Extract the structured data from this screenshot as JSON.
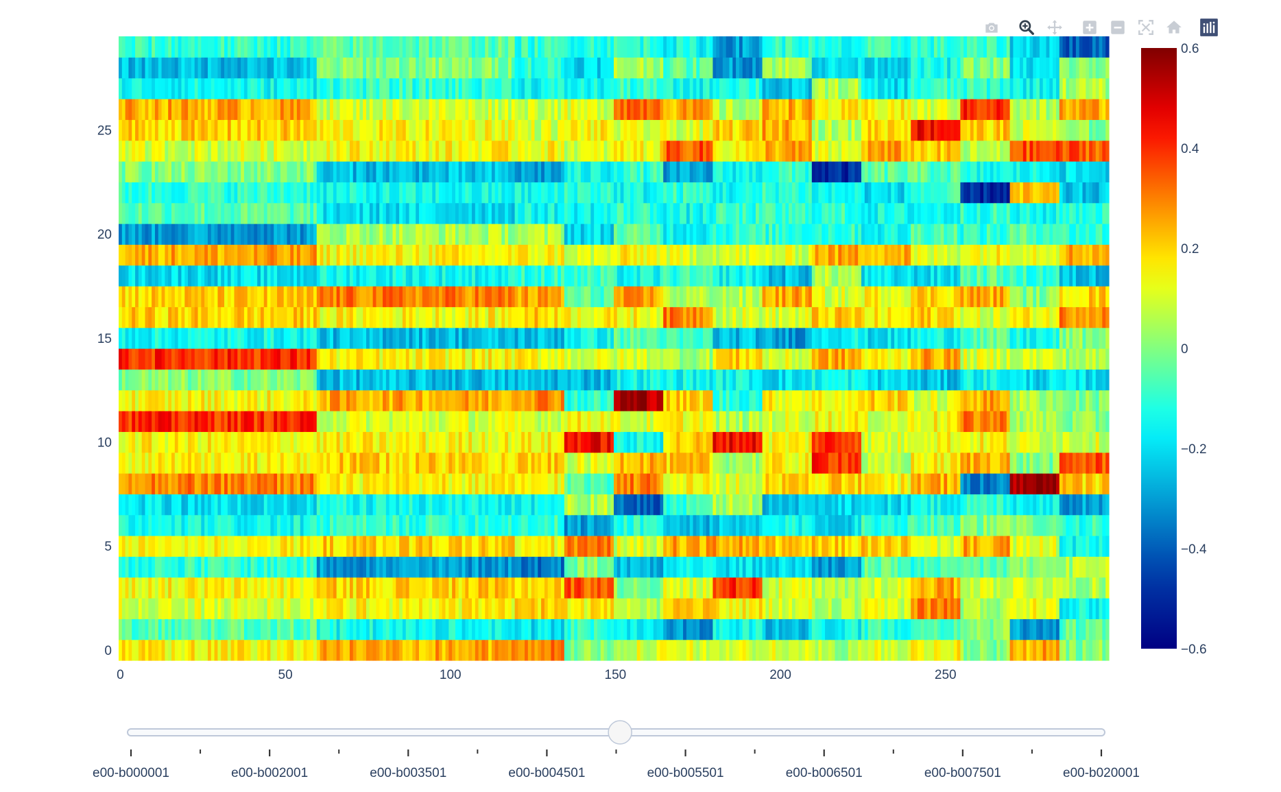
{
  "modebar": {
    "buttons": [
      {
        "icon": "camera-icon",
        "title": "Download plot as a png",
        "active": false
      },
      {
        "icon": "zoom-icon",
        "title": "Zoom",
        "active": true
      },
      {
        "icon": "pan-icon",
        "title": "Pan",
        "active": false
      },
      {
        "icon": "zoom-in-icon",
        "title": "Zoom in",
        "active": false
      },
      {
        "icon": "zoom-out-icon",
        "title": "Zoom out",
        "active": false
      },
      {
        "icon": "autoscale-icon",
        "title": "Autoscale",
        "active": false
      },
      {
        "icon": "reset-axes-icon",
        "title": "Reset axes",
        "active": false
      }
    ],
    "logo_icon": "plotly-logo-icon"
  },
  "chart_data": {
    "type": "heatmap",
    "title": "",
    "xlabel": "",
    "ylabel": "",
    "x_range": [
      0,
      299
    ],
    "y_range": [
      0,
      29
    ],
    "x_ticks": [
      0,
      50,
      100,
      150,
      200,
      250
    ],
    "y_ticks": [
      0,
      5,
      10,
      15,
      20,
      25
    ],
    "colorscale": "Jet",
    "colorbar": {
      "range": [
        -0.6,
        0.6
      ],
      "ticks": [
        0.6,
        0.4,
        0.2,
        0,
        -0.2,
        -0.4,
        -0.6
      ],
      "tick_labels": [
        "0.6",
        "0.4",
        "0.2",
        "0",
        "−0.2",
        "−0.4",
        "−0.6"
      ]
    },
    "column_blocks": [
      0,
      60,
      120,
      135,
      150,
      165,
      180,
      195,
      210,
      225,
      240,
      255,
      270,
      285,
      300
    ],
    "block_means": [
      [
        0.15,
        0.25,
        0.3,
        0.0,
        0.1,
        0.1,
        0.1,
        0.1,
        0.05,
        0.1,
        0.15,
        0.0,
        0.25,
        0.0,
        0.1
      ],
      [
        -0.05,
        -0.15,
        -0.2,
        -0.1,
        -0.15,
        -0.3,
        -0.15,
        -0.25,
        -0.15,
        -0.1,
        -0.05,
        0.0,
        -0.3,
        -0.05,
        -0.25
      ],
      [
        0.1,
        0.15,
        0.2,
        0.15,
        0.05,
        0.25,
        0.15,
        0.1,
        0.05,
        0.1,
        0.3,
        0.05,
        0.15,
        -0.15,
        0.45
      ],
      [
        0.15,
        0.2,
        0.2,
        0.35,
        0.0,
        0.1,
        0.4,
        0.1,
        0.05,
        0.1,
        0.25,
        0.1,
        0.1,
        0.05,
        0.25
      ],
      [
        -0.1,
        -0.3,
        -0.35,
        0.0,
        -0.25,
        -0.15,
        -0.2,
        -0.2,
        -0.3,
        -0.05,
        -0.1,
        -0.05,
        0.0,
        0.05,
        -0.3
      ],
      [
        0.15,
        0.2,
        0.15,
        0.3,
        0.1,
        0.25,
        0.25,
        0.2,
        0.2,
        0.2,
        0.1,
        0.25,
        0.1,
        -0.15,
        0.45
      ],
      [
        -0.15,
        -0.1,
        -0.1,
        -0.3,
        -0.1,
        -0.25,
        -0.25,
        -0.15,
        -0.2,
        -0.1,
        -0.05,
        0.0,
        0.0,
        -0.1,
        -0.05
      ],
      [
        -0.2,
        -0.15,
        -0.15,
        0.05,
        -0.4,
        -0.1,
        0.05,
        -0.25,
        -0.2,
        -0.2,
        -0.15,
        -0.1,
        -0.15,
        -0.3,
        -0.1
      ],
      [
        0.3,
        0.15,
        0.15,
        -0.05,
        0.3,
        0.15,
        0.1,
        0.2,
        0.2,
        0.15,
        0.25,
        -0.35,
        0.55,
        0.2,
        0.15
      ],
      [
        0.15,
        0.2,
        0.2,
        0.1,
        0.25,
        0.2,
        0.05,
        0.15,
        0.4,
        0.05,
        0.15,
        0.25,
        0.0,
        0.35,
        -0.1
      ],
      [
        0.15,
        0.15,
        0.15,
        0.45,
        -0.15,
        0.2,
        0.45,
        0.15,
        0.4,
        0.1,
        0.15,
        0.15,
        0.1,
        0.1,
        0.1
      ],
      [
        0.4,
        0.1,
        0.1,
        0.15,
        0.1,
        0.15,
        0.05,
        0.1,
        0.15,
        0.1,
        0.15,
        0.3,
        0.05,
        0.0,
        0.3
      ],
      [
        0.15,
        0.25,
        0.3,
        -0.1,
        0.55,
        0.2,
        -0.1,
        0.15,
        0.15,
        0.2,
        0.1,
        0.25,
        0.05,
        0.0,
        0.35
      ],
      [
        0.0,
        -0.25,
        -0.25,
        -0.25,
        -0.15,
        -0.15,
        -0.15,
        -0.2,
        -0.15,
        -0.2,
        -0.25,
        -0.15,
        -0.2,
        -0.2,
        -0.15
      ],
      [
        0.4,
        0.15,
        0.15,
        0.1,
        0.1,
        0.05,
        0.2,
        0.1,
        0.25,
        0.15,
        0.25,
        0.1,
        0.1,
        0.05,
        0.15
      ],
      [
        -0.15,
        -0.25,
        -0.25,
        -0.15,
        -0.05,
        -0.1,
        -0.25,
        -0.3,
        -0.15,
        -0.2,
        -0.15,
        -0.05,
        -0.15,
        0.0,
        -0.25
      ],
      [
        0.2,
        0.15,
        0.2,
        0.15,
        0.15,
        0.3,
        0.1,
        0.1,
        0.2,
        0.15,
        0.2,
        0.1,
        0.15,
        0.3,
        0.05
      ],
      [
        0.2,
        0.3,
        0.25,
        -0.05,
        0.25,
        0.05,
        0.05,
        0.25,
        0.1,
        0.15,
        0.2,
        0.25,
        0.0,
        0.2,
        0.1
      ],
      [
        -0.2,
        -0.15,
        -0.1,
        -0.1,
        -0.15,
        -0.1,
        -0.15,
        -0.25,
        0.05,
        -0.2,
        -0.2,
        -0.05,
        -0.1,
        -0.25,
        0.05
      ],
      [
        0.25,
        0.15,
        0.15,
        0.1,
        0.15,
        0.1,
        0.1,
        0.1,
        0.25,
        0.25,
        0.1,
        0.15,
        0.15,
        0.25,
        0.05
      ],
      [
        -0.3,
        0.05,
        0.05,
        -0.2,
        -0.05,
        -0.15,
        -0.1,
        -0.1,
        -0.1,
        -0.15,
        -0.05,
        -0.1,
        -0.05,
        -0.1,
        0.0
      ],
      [
        -0.05,
        -0.2,
        -0.15,
        -0.15,
        -0.1,
        -0.15,
        -0.1,
        -0.1,
        -0.1,
        -0.15,
        -0.15,
        -0.1,
        -0.15,
        -0.1,
        -0.1
      ],
      [
        -0.1,
        -0.15,
        -0.15,
        -0.1,
        -0.15,
        -0.1,
        -0.15,
        -0.1,
        -0.15,
        -0.2,
        -0.1,
        -0.5,
        0.2,
        -0.25,
        -0.1
      ],
      [
        0.0,
        -0.25,
        -0.3,
        -0.15,
        -0.1,
        -0.3,
        -0.15,
        -0.1,
        -0.5,
        -0.05,
        -0.05,
        -0.15,
        -0.15,
        -0.2,
        -0.1
      ],
      [
        0.1,
        0.15,
        0.15,
        0.1,
        0.15,
        0.35,
        0.15,
        0.25,
        0.1,
        0.25,
        0.2,
        0.05,
        0.35,
        0.35,
        0.05
      ],
      [
        0.2,
        0.15,
        0.1,
        0.15,
        0.1,
        0.1,
        0.2,
        0.25,
        0.05,
        0.2,
        0.45,
        0.2,
        0.1,
        0.0,
        0.4
      ],
      [
        0.25,
        0.1,
        0.1,
        0.1,
        0.35,
        0.25,
        0.05,
        0.25,
        0.15,
        0.15,
        0.1,
        0.4,
        0.05,
        0.25,
        0.15
      ],
      [
        -0.15,
        -0.1,
        -0.15,
        -0.15,
        -0.1,
        -0.15,
        -0.1,
        -0.25,
        0.05,
        -0.2,
        -0.1,
        -0.1,
        -0.15,
        0.05,
        -0.25
      ],
      [
        -0.25,
        0.0,
        -0.1,
        -0.2,
        0.05,
        -0.05,
        -0.3,
        0.05,
        -0.2,
        -0.2,
        -0.15,
        0.0,
        -0.2,
        0.0,
        -0.1
      ],
      [
        -0.1,
        -0.05,
        -0.1,
        -0.1,
        -0.1,
        -0.15,
        -0.3,
        -0.1,
        -0.15,
        -0.1,
        -0.1,
        -0.1,
        -0.2,
        -0.4,
        0.05
      ]
    ],
    "slider": {
      "labels": [
        "e00-b000001",
        "e00-b002001",
        "e00-b003501",
        "e00-b004501",
        "e00-b005501",
        "e00-b006501",
        "e00-b007501",
        "e00-b020001"
      ],
      "minor_ticks_between": 1,
      "active_index": 7
    }
  }
}
